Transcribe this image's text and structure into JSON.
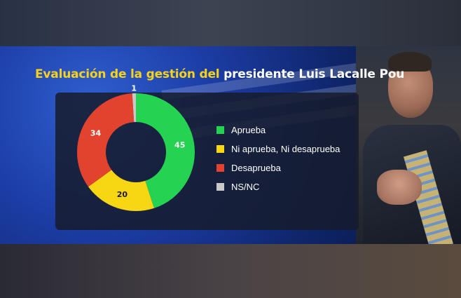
{
  "title": {
    "part1": "Evaluación de la gestión del ",
    "part2": "presidente Luis Lacalle Pou"
  },
  "colors": {
    "title_accent": "#f6d31a",
    "aprueba": "#25d352",
    "ni_aprueba_ni_desaprueba": "#f7d614",
    "desaprueba": "#e2432f",
    "ns_nc": "#c9c9c9"
  },
  "chart_data": {
    "type": "pie",
    "donut": true,
    "title": "Evaluación de la gestión del presidente Luis Lacalle Pou",
    "legend_position": "right",
    "series": [
      {
        "name": "Aprueba",
        "value": 45,
        "color": "#25d352"
      },
      {
        "name": "Ni aprueba, Ni desaprueba",
        "value": 20,
        "color": "#f7d614"
      },
      {
        "name": "Desaprueba",
        "value": 34,
        "color": "#e2432f"
      },
      {
        "name": "NS/NC",
        "value": 1,
        "color": "#c9c9c9"
      }
    ]
  }
}
